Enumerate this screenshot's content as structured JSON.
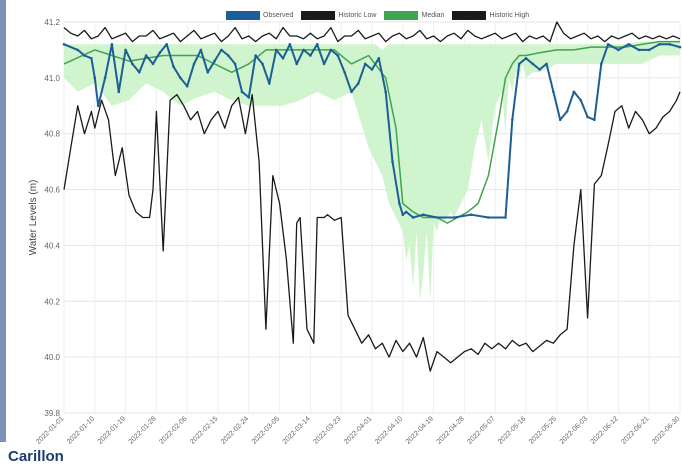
{
  "station": {
    "name": "Carillon"
  },
  "colors": {
    "observed": "#1c5f96",
    "historic_low": "#1a1a1a",
    "median": "#3ea44f",
    "historic_high": "#1a1a1a",
    "range_fill": "#c8f2c6",
    "accent_bar": "#7e92b5"
  },
  "chart_data": {
    "type": "line",
    "title": "",
    "xlabel": "",
    "ylabel": "Water Levels (m)",
    "ylim": [
      39.8,
      41.2
    ],
    "yticks": [
      "39.8",
      "40.0",
      "40.2",
      "40.4",
      "40.6",
      "40.8",
      "41.0",
      "41.2"
    ],
    "xlim": [
      1,
      181
    ],
    "xticks": [
      {
        "label": "2022-01-01",
        "day": 1
      },
      {
        "label": "2022-01-10",
        "day": 10
      },
      {
        "label": "2022-01-19",
        "day": 19
      },
      {
        "label": "2022-01-28",
        "day": 28
      },
      {
        "label": "2022-02-06",
        "day": 37
      },
      {
        "label": "2022-02-15",
        "day": 46
      },
      {
        "label": "2022-02-24",
        "day": 55
      },
      {
        "label": "2022-03-05",
        "day": 64
      },
      {
        "label": "2022-03-14",
        "day": 73
      },
      {
        "label": "2022-03-23",
        "day": 82
      },
      {
        "label": "2022-04-01",
        "day": 91
      },
      {
        "label": "2022-04-10",
        "day": 100
      },
      {
        "label": "2022-04-19",
        "day": 109
      },
      {
        "label": "2022-04-28",
        "day": 118
      },
      {
        "label": "2022-05-07",
        "day": 127
      },
      {
        "label": "2022-05-16",
        "day": 136
      },
      {
        "label": "2022-05-25",
        "day": 145
      },
      {
        "label": "2022-06-03",
        "day": 154
      },
      {
        "label": "2022-06-12",
        "day": 163
      },
      {
        "label": "2022-06-21",
        "day": 172
      },
      {
        "label": "2022-06-30",
        "day": 181
      }
    ],
    "legend": {
      "position": "top",
      "items": [
        "Observed",
        "Historic Low",
        "Median",
        "Historic High"
      ]
    },
    "grid": true,
    "series": [
      {
        "name": "Observed",
        "x": [
          1,
          5,
          7,
          9,
          10,
          11,
          13,
          15,
          17,
          19,
          21,
          23,
          25,
          27,
          29,
          31,
          33,
          35,
          37,
          39,
          41,
          43,
          45,
          47,
          49,
          51,
          53,
          55,
          57,
          59,
          61,
          63,
          65,
          67,
          69,
          71,
          73,
          75,
          77,
          79,
          81,
          83,
          85,
          87,
          89,
          91,
          93,
          95,
          97,
          99,
          100,
          101,
          103,
          106,
          110,
          115,
          120,
          125,
          130,
          132,
          134,
          136,
          138,
          140,
          142,
          144,
          146,
          148,
          150,
          152,
          154,
          156,
          158,
          160,
          163,
          166,
          169,
          172,
          175,
          178,
          181
        ],
        "values": [
          41.12,
          41.1,
          41.08,
          41.07,
          41.0,
          40.9,
          41.0,
          41.12,
          40.95,
          41.1,
          41.05,
          41.02,
          41.08,
          41.05,
          41.09,
          41.12,
          41.04,
          41.0,
          40.97,
          41.05,
          41.1,
          41.02,
          41.06,
          41.1,
          41.08,
          41.05,
          40.95,
          40.93,
          41.08,
          41.05,
          40.98,
          41.1,
          41.07,
          41.12,
          41.05,
          41.1,
          41.08,
          41.12,
          41.05,
          41.1,
          41.08,
          41.02,
          40.95,
          40.98,
          41.05,
          41.03,
          41.07,
          40.95,
          40.7,
          40.55,
          40.51,
          40.52,
          40.5,
          40.51,
          40.5,
          40.5,
          40.51,
          40.5,
          40.5,
          40.85,
          41.05,
          41.07,
          41.05,
          41.03,
          41.05,
          40.95,
          40.85,
          40.88,
          40.95,
          40.92,
          40.86,
          40.85,
          41.05,
          41.12,
          41.1,
          41.12,
          41.1,
          41.1,
          41.12,
          41.12,
          41.11
        ]
      },
      {
        "name": "Historic Low",
        "x": [
          1,
          3,
          5,
          7,
          9,
          10,
          12,
          14,
          16,
          18,
          20,
          22,
          24,
          26,
          27,
          28,
          30,
          32,
          34,
          36,
          38,
          40,
          42,
          44,
          46,
          48,
          50,
          52,
          54,
          56,
          58,
          60,
          62,
          64,
          66,
          68,
          69,
          70,
          72,
          74,
          75,
          77,
          78,
          80,
          82,
          84,
          86,
          88,
          90,
          92,
          94,
          96,
          98,
          100,
          102,
          104,
          106,
          108,
          110,
          112,
          114,
          116,
          118,
          120,
          122,
          124,
          126,
          128,
          130,
          132,
          134,
          136,
          138,
          140,
          142,
          144,
          146,
          148,
          150,
          152,
          154,
          156,
          158,
          160,
          162,
          164,
          166,
          168,
          170,
          172,
          174,
          176,
          178,
          180,
          181
        ],
        "values": [
          40.6,
          40.75,
          40.9,
          40.8,
          40.88,
          40.82,
          40.92,
          40.85,
          40.65,
          40.75,
          40.58,
          40.52,
          40.5,
          40.5,
          40.6,
          40.88,
          40.38,
          40.92,
          40.94,
          40.9,
          40.85,
          40.88,
          40.8,
          40.85,
          40.88,
          40.82,
          40.9,
          40.93,
          40.8,
          40.94,
          40.7,
          40.1,
          40.65,
          40.55,
          40.35,
          40.05,
          40.48,
          40.5,
          40.1,
          40.05,
          40.5,
          40.5,
          40.51,
          40.49,
          40.5,
          40.15,
          40.1,
          40.05,
          40.08,
          40.03,
          40.05,
          40.0,
          40.06,
          40.02,
          40.05,
          40.0,
          40.07,
          39.95,
          40.02,
          40.0,
          39.98,
          40.0,
          40.02,
          40.03,
          40.01,
          40.05,
          40.03,
          40.05,
          40.03,
          40.06,
          40.04,
          40.05,
          40.02,
          40.04,
          40.06,
          40.05,
          40.08,
          40.1,
          40.4,
          40.6,
          40.14,
          40.62,
          40.65,
          40.76,
          40.88,
          40.9,
          40.82,
          40.88,
          40.85,
          40.8,
          40.82,
          40.86,
          40.88,
          40.92,
          40.95
        ]
      },
      {
        "name": "Median",
        "x": [
          1,
          10,
          20,
          30,
          40,
          50,
          55,
          60,
          70,
          80,
          85,
          90,
          95,
          98,
          100,
          103,
          106,
          110,
          113,
          116,
          119,
          122,
          125,
          128,
          130,
          132,
          134,
          136,
          140,
          145,
          150,
          155,
          160,
          165,
          170,
          175,
          181
        ],
        "values": [
          41.05,
          41.1,
          41.06,
          41.08,
          41.08,
          41.02,
          41.05,
          41.1,
          41.1,
          41.1,
          41.05,
          41.08,
          41.0,
          40.82,
          40.55,
          40.52,
          40.5,
          40.5,
          40.48,
          40.5,
          40.52,
          40.55,
          40.65,
          40.85,
          41.0,
          41.05,
          41.08,
          41.08,
          41.09,
          41.1,
          41.1,
          41.11,
          41.11,
          41.11,
          41.12,
          41.13,
          41.13
        ]
      },
      {
        "name": "Historic High",
        "x": [
          1,
          3,
          5,
          7,
          9,
          11,
          13,
          15,
          17,
          19,
          21,
          23,
          25,
          27,
          29,
          31,
          33,
          35,
          37,
          39,
          41,
          43,
          45,
          47,
          49,
          51,
          53,
          55,
          57,
          59,
          61,
          63,
          65,
          67,
          69,
          71,
          73,
          75,
          77,
          79,
          81,
          83,
          85,
          87,
          89,
          91,
          93,
          95,
          97,
          99,
          101,
          103,
          105,
          107,
          109,
          111,
          113,
          115,
          117,
          119,
          121,
          123,
          125,
          127,
          129,
          131,
          133,
          135,
          137,
          139,
          141,
          143,
          145,
          147,
          149,
          151,
          153,
          155,
          157,
          159,
          161,
          163,
          165,
          167,
          169,
          171,
          173,
          175,
          177,
          179,
          181
        ],
        "values": [
          41.18,
          41.16,
          41.15,
          41.17,
          41.14,
          41.15,
          41.18,
          41.14,
          41.15,
          41.16,
          41.13,
          41.15,
          41.15,
          41.17,
          41.14,
          41.15,
          41.16,
          41.13,
          41.15,
          41.17,
          41.14,
          41.15,
          41.16,
          41.13,
          41.15,
          41.18,
          41.14,
          41.15,
          41.13,
          41.15,
          41.16,
          41.14,
          41.18,
          41.15,
          41.15,
          41.14,
          41.16,
          41.14,
          41.15,
          41.18,
          41.13,
          41.15,
          41.15,
          41.17,
          41.14,
          41.15,
          41.16,
          41.13,
          41.15,
          41.16,
          41.14,
          41.15,
          41.17,
          41.14,
          41.15,
          41.13,
          41.15,
          41.16,
          41.14,
          41.17,
          41.15,
          41.14,
          41.15,
          41.16,
          41.14,
          41.15,
          41.16,
          41.13,
          41.15,
          41.14,
          41.15,
          41.13,
          41.2,
          41.16,
          41.14,
          41.15,
          41.16,
          41.14,
          41.15,
          41.13,
          41.15,
          41.14,
          41.15,
          41.16,
          41.14,
          41.15,
          41.14,
          41.15,
          41.14,
          41.15,
          41.14
        ]
      }
    ],
    "range_band": {
      "x": [
        1,
        5,
        10,
        15,
        20,
        25,
        30,
        35,
        40,
        45,
        50,
        55,
        60,
        65,
        70,
        75,
        80,
        85,
        90,
        92,
        94,
        96,
        98,
        100,
        101,
        102,
        103,
        104,
        105,
        106,
        107,
        108,
        109,
        110,
        111,
        112,
        113,
        114,
        115,
        117,
        119,
        121,
        123,
        125,
        127,
        129,
        130,
        131,
        132,
        133,
        134,
        135,
        136,
        138,
        140,
        145,
        150,
        155,
        160,
        165,
        170,
        175,
        181
      ],
      "upper": [
        41.12,
        41.12,
        41.12,
        41.12,
        41.12,
        41.12,
        41.12,
        41.12,
        41.12,
        41.12,
        41.12,
        41.12,
        41.12,
        41.12,
        41.12,
        41.12,
        41.12,
        41.12,
        41.12,
        41.12,
        41.1,
        41.12,
        41.12,
        41.12,
        41.12,
        41.12,
        41.12,
        41.12,
        41.12,
        41.12,
        41.12,
        41.12,
        41.12,
        41.12,
        41.12,
        41.12,
        41.12,
        41.12,
        41.12,
        41.12,
        41.12,
        41.12,
        41.12,
        41.12,
        41.12,
        41.12,
        41.12,
        41.12,
        41.12,
        41.12,
        41.12,
        41.12,
        41.12,
        41.12,
        41.12,
        41.12,
        41.12,
        41.12,
        41.12,
        41.12,
        41.13,
        41.13,
        41.13
      ],
      "lower": [
        41.0,
        40.95,
        40.98,
        40.9,
        40.92,
        40.98,
        40.95,
        40.9,
        40.93,
        40.95,
        40.92,
        40.9,
        40.9,
        40.9,
        40.92,
        40.95,
        40.92,
        40.95,
        40.75,
        40.7,
        40.65,
        40.55,
        40.5,
        40.45,
        40.35,
        40.4,
        40.25,
        40.45,
        40.2,
        40.3,
        40.45,
        40.2,
        40.48,
        40.45,
        40.5,
        40.48,
        40.5,
        40.52,
        40.5,
        40.55,
        40.6,
        40.75,
        40.85,
        40.7,
        40.9,
        40.95,
        40.8,
        41.0,
        40.95,
        41.02,
        41.0,
        41.05,
        41.0,
        41.02,
        41.02,
        41.05,
        41.05,
        41.05,
        41.05,
        41.05,
        41.05,
        41.08,
        41.08
      ]
    }
  }
}
